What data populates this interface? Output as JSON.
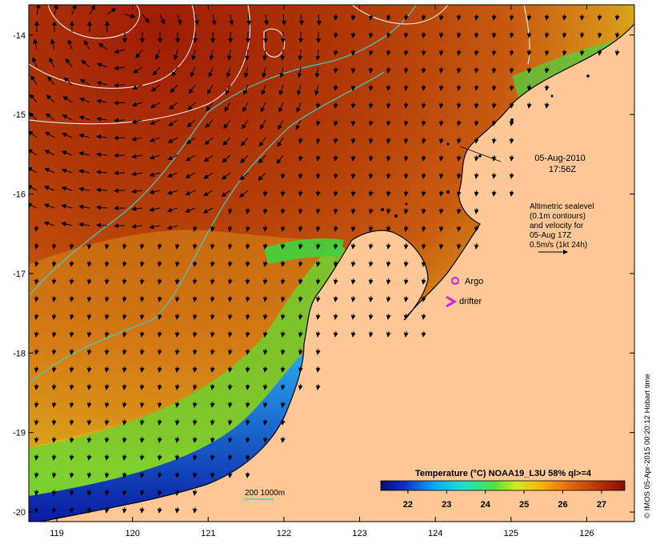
{
  "chart_data": {
    "type": "heatmap",
    "title": "Temperature (°C) NOAA19_L3U 58% ql>=4",
    "x_ticks": [
      119,
      120,
      121,
      122,
      123,
      124,
      125,
      126
    ],
    "y_ticks": [
      -14,
      -15,
      -16,
      -17,
      -18,
      -19,
      -20
    ],
    "xlim": [
      118.63,
      126.63
    ],
    "ylim": [
      -20.12,
      -13.62
    ],
    "colorbar_ticks": [
      22,
      23,
      24,
      25,
      26,
      27
    ],
    "colorbar_range": [
      21.3,
      27.6
    ],
    "colors": {
      "land": "#fdc896",
      "contour": "#ffffff",
      "isobath": "#40d0c0",
      "argo": "#d020e0",
      "coast": "#000000"
    }
  },
  "annotations": {
    "date_line1": "05-Aug-2010",
    "date_line2": "17:56Z",
    "alt_line1": "Altimetric sealevel",
    "alt_line2": "(0.1m contours)",
    "alt_line3": "and velocity for",
    "alt_line4": "05-Aug 17Z",
    "alt_line5": "0.5m/s (1kt 24h)",
    "argo_label": "Argo",
    "drifter_label": "drifter",
    "isobath_label": "200  1000m"
  },
  "credit": "© IMOS 05-Apr-2015 00:20:12 Hobart time"
}
